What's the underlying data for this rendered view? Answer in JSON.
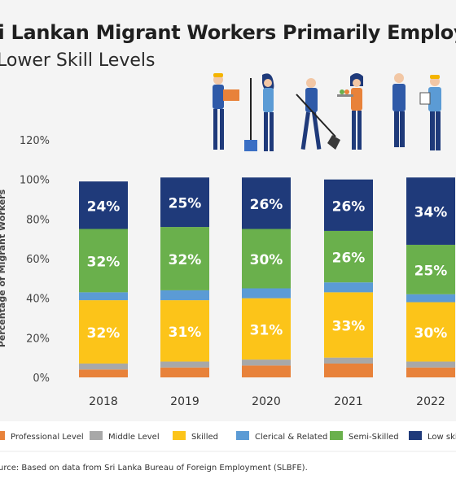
{
  "header": {
    "title": "ri Lankan Migrant Workers Primarily Employe",
    "subtitle": "Lower Skill Levels"
  },
  "source": "urce: Based on data from Sri Lanka Bureau of Foreign Employment (SLBFE).",
  "colors": {
    "Professional Level": "#e8823a",
    "Middle Level": "#a8a8a8",
    "Skilled": "#fcc419",
    "Clerical & Related": "#5b9bd5",
    "Semi-Skilled": "#6ab04c",
    "Low skill": "#1f3a7a"
  },
  "legend": [
    {
      "label": "Professional Level",
      "key": "Professional Level"
    },
    {
      "label": "Middle Level",
      "key": "Middle Level"
    },
    {
      "label": "Skilled",
      "key": "Skilled"
    },
    {
      "label": "Clerical & Related",
      "key": "Clerical & Related"
    },
    {
      "label": "Semi-Skilled",
      "key": "Semi-Skilled"
    },
    {
      "label": "Low skil",
      "key": "Low skill"
    }
  ],
  "chart_data": {
    "type": "bar",
    "stacked": true,
    "categories": [
      "2018",
      "2019",
      "2020",
      "2021",
      "2022"
    ],
    "ylabel": "Percentage of Migrant Workers",
    "ylim": [
      0,
      120
    ],
    "yticks": [
      "0%",
      "20%",
      "40%",
      "60%",
      "80%",
      "100%",
      "120%"
    ],
    "grid": false,
    "legend_position": "bottom",
    "series": [
      {
        "name": "Professional Level",
        "values": [
          4,
          5,
          6,
          7,
          5
        ],
        "labels": [
          "",
          "",
          "",
          "",
          ""
        ]
      },
      {
        "name": "Middle Level",
        "values": [
          3,
          3,
          3,
          3,
          3
        ],
        "labels": [
          "",
          "",
          "",
          "",
          ""
        ]
      },
      {
        "name": "Skilled",
        "values": [
          32,
          31,
          31,
          33,
          30
        ],
        "labels": [
          "32%",
          "31%",
          "31%",
          "33%",
          "30%"
        ]
      },
      {
        "name": "Clerical & Related",
        "values": [
          4,
          5,
          5,
          5,
          4
        ],
        "labels": [
          "",
          "",
          "",
          "",
          ""
        ]
      },
      {
        "name": "Semi-Skilled",
        "values": [
          32,
          32,
          30,
          26,
          25
        ],
        "labels": [
          "32%",
          "32%",
          "30%",
          "26%",
          "25%"
        ]
      },
      {
        "name": "Low skill",
        "values": [
          24,
          25,
          26,
          26,
          34
        ],
        "labels": [
          "24%",
          "25%",
          "26%",
          "26%",
          "34%"
        ]
      }
    ]
  },
  "illustration": {
    "workers": [
      "worker-with-box-icon",
      "worker-with-mop-icon",
      "worker-with-shovel-icon",
      "waiter-with-tray-icon",
      "doctor-icon",
      "engineer-with-clipboard-icon"
    ]
  }
}
